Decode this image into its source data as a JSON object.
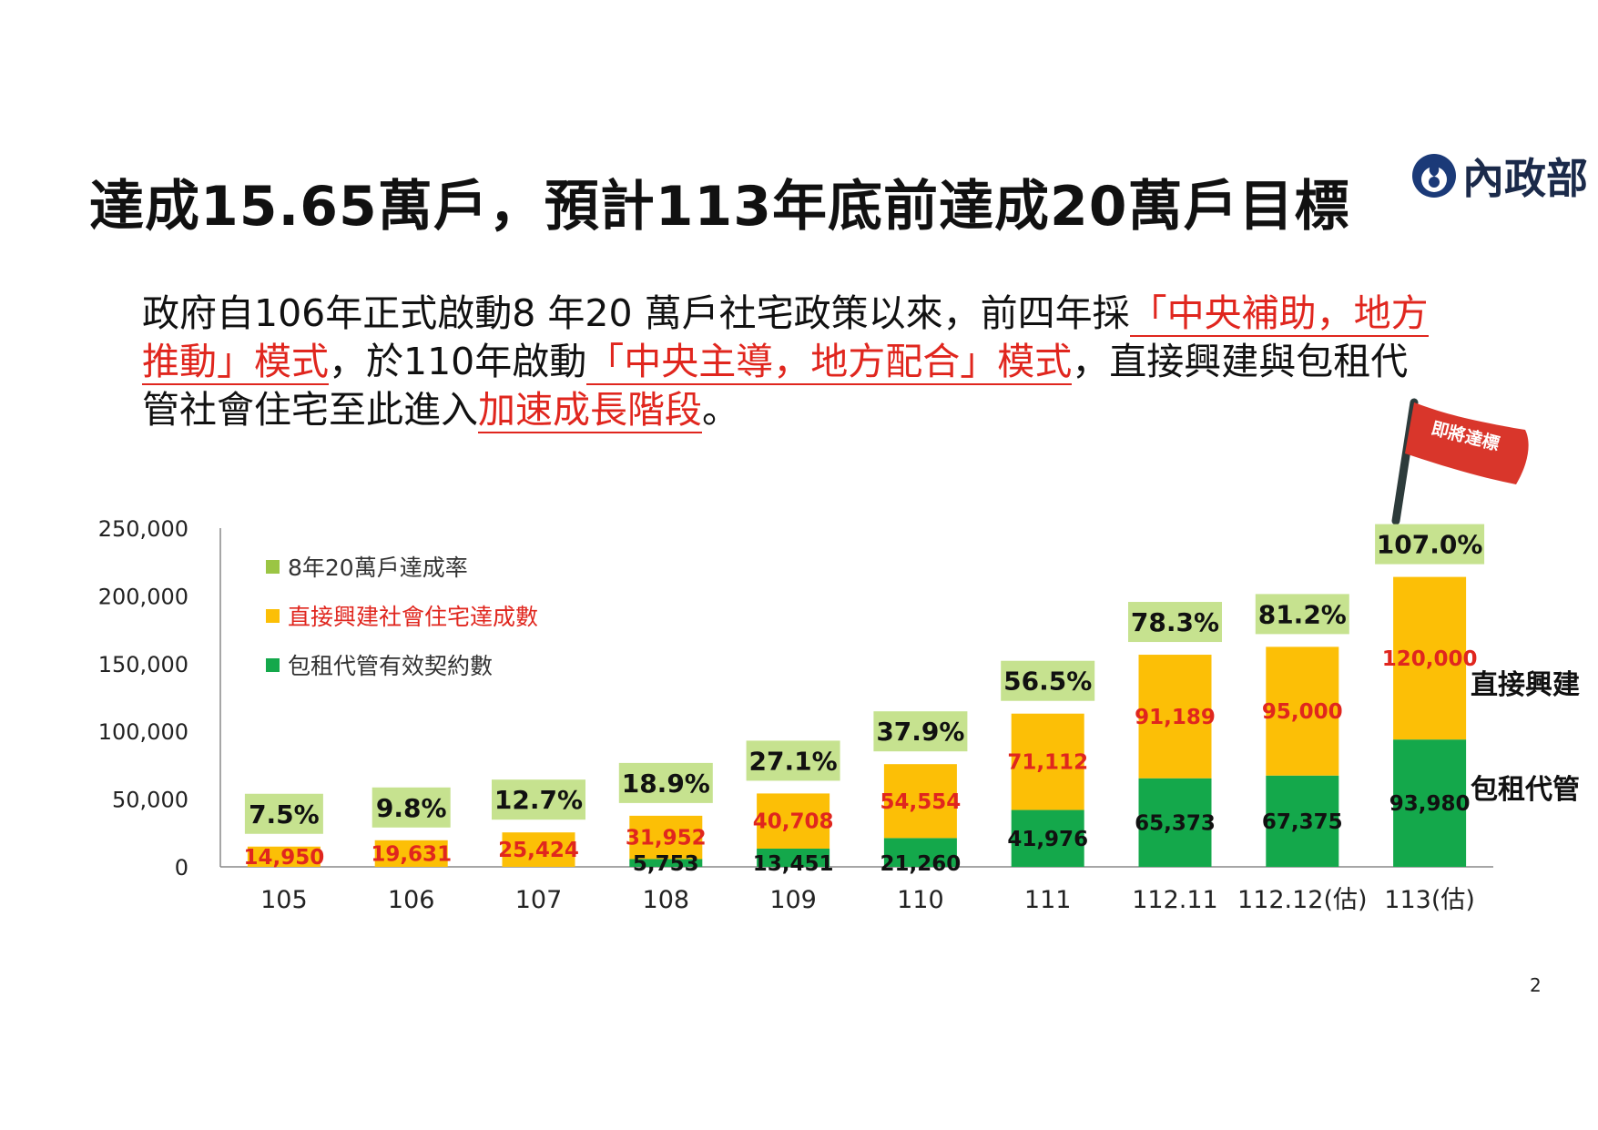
{
  "title": "達成15.65萬戶，預計113年底前達成20萬戶目標",
  "logo": {
    "text": "內政部"
  },
  "paragraph": {
    "l1_a": "政府自106年正式啟動8 年20 萬戶社宅政策以來，前四年採",
    "l1_b": "「中央補助，地方",
    "l2_a": "推動」模式",
    "l2_b": "，於110年啟動",
    "l2_c": "「中央主導，地方配合」模式",
    "l2_d": "，直接興建與包租代",
    "l3_a": "管社會住宅至此進入",
    "l3_b": "加速成長階段",
    "l3_c": "。"
  },
  "flag_label": "即將達標",
  "page_number": "2",
  "colors": {
    "green": "#14a84b",
    "orange": "#fcbf06",
    "label_bg": "#c6e28f",
    "legend_rate": "#9bc544",
    "red": "#e0261e",
    "flag": "#d9362b",
    "pole": "#2d3b3b"
  },
  "chart_data": {
    "type": "bar",
    "stacked": true,
    "categories": [
      "105",
      "106",
      "107",
      "108",
      "109",
      "110",
      "111",
      "112.11",
      "112.12(估)",
      "113(估)"
    ],
    "series": [
      {
        "name": "包租代管有效契約數",
        "color": "#14a84b",
        "values": [
          0,
          0,
          0,
          5753,
          13451,
          21260,
          41976,
          65373,
          67375,
          93980
        ],
        "labels": [
          "",
          "",
          "",
          "5,753",
          "13,451",
          "21,260",
          "41,976",
          "65,373",
          "67,375",
          "93,980"
        ]
      },
      {
        "name": "直接興建社會住宅達成數",
        "color": "#fcbf06",
        "values": [
          14950,
          19631,
          25424,
          31952,
          40708,
          54554,
          71112,
          91189,
          95000,
          120000
        ],
        "labels": [
          "14,950",
          "19,631",
          "25,424",
          "31,952",
          "40,708",
          "54,554",
          "71,112",
          "91,189",
          "95,000",
          "120,000"
        ]
      }
    ],
    "rates": [
      "7.5%",
      "9.8%",
      "12.7%",
      "18.9%",
      "27.1%",
      "37.9%",
      "56.5%",
      "78.3%",
      "81.2%",
      "107.0%"
    ],
    "rate_legend": "8年20萬戶達成率",
    "ylim": [
      0,
      250000
    ],
    "yticks": [
      "0",
      "50,000",
      "100,000",
      "150,000",
      "200,000",
      "250,000"
    ],
    "ytick_values": [
      0,
      50000,
      100000,
      150000,
      200000,
      250000
    ],
    "legend_position": "top-left",
    "side_labels": {
      "orange": "直接興建",
      "green": "包租代管"
    },
    "grid": false
  }
}
